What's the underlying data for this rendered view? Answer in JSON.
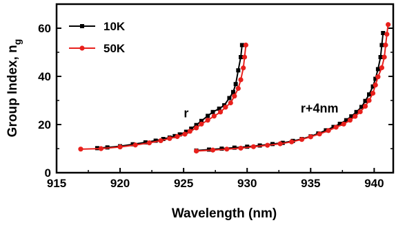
{
  "chart_data": {
    "type": "line",
    "xlabel": "Wavelength (nm)",
    "ylabel": "Group Index, n",
    "ylabel_sub": "g",
    "xlim": [
      915,
      941.5
    ],
    "ylim": [
      0,
      70
    ],
    "xticks": [
      915,
      920,
      925,
      930,
      935,
      940
    ],
    "yticks": [
      0,
      20,
      40,
      60
    ],
    "legend_position": "top-left",
    "annotations": [
      {
        "text": "r",
        "x": 925.2,
        "y": 23
      },
      {
        "text": "r+4nm",
        "x": 935.7,
        "y": 25
      }
    ],
    "series": [
      {
        "name": "10K",
        "color": "#000000",
        "marker": "square",
        "segments": [
          [
            [
              918.2,
              10.2
            ],
            [
              919.0,
              10.5
            ],
            [
              920.0,
              11.0
            ],
            [
              921.0,
              11.8
            ],
            [
              922.0,
              12.6
            ],
            [
              922.8,
              13.3
            ],
            [
              923.4,
              14.0
            ],
            [
              923.9,
              14.6
            ],
            [
              924.3,
              15.2
            ],
            [
              924.7,
              15.9
            ],
            [
              925.2,
              17.0
            ],
            [
              925.6,
              18.3
            ],
            [
              926.0,
              19.8
            ],
            [
              926.4,
              21.5
            ],
            [
              926.9,
              23.6
            ],
            [
              927.3,
              25.2
            ],
            [
              927.8,
              26.6
            ],
            [
              928.2,
              28.0
            ],
            [
              928.6,
              31.0
            ],
            [
              928.9,
              33.5
            ],
            [
              929.1,
              36.8
            ],
            [
              929.3,
              42.5
            ],
            [
              929.5,
              48.0
            ],
            [
              929.6,
              53.0
            ]
          ],
          [
            [
              926.0,
              9.2
            ],
            [
              927.0,
              9.6
            ],
            [
              928.0,
              10.0
            ],
            [
              929.0,
              10.4
            ],
            [
              930.0,
              10.8
            ],
            [
              931.0,
              11.3
            ],
            [
              932.0,
              11.9
            ],
            [
              932.8,
              12.4
            ],
            [
              933.6,
              13.2
            ],
            [
              934.3,
              14.0
            ],
            [
              935.0,
              15.1
            ],
            [
              935.6,
              16.3
            ],
            [
              936.2,
              17.6
            ],
            [
              936.8,
              19.0
            ],
            [
              937.3,
              20.3
            ],
            [
              937.8,
              21.8
            ],
            [
              938.2,
              23.4
            ],
            [
              938.6,
              25.2
            ],
            [
              939.0,
              27.3
            ],
            [
              939.3,
              29.8
            ],
            [
              939.6,
              32.5
            ],
            [
              939.9,
              35.8
            ],
            [
              940.1,
              39.0
            ],
            [
              940.3,
              43.0
            ],
            [
              940.5,
              48.0
            ],
            [
              940.6,
              53.0
            ],
            [
              940.7,
              58.0
            ]
          ]
        ]
      },
      {
        "name": "50K",
        "color": "#e8201c",
        "marker": "circle",
        "segments": [
          [
            [
              916.9,
              9.8
            ],
            [
              918.5,
              10.0
            ],
            [
              920.0,
              10.7
            ],
            [
              921.2,
              11.5
            ],
            [
              922.3,
              12.4
            ],
            [
              923.2,
              13.3
            ],
            [
              923.9,
              14.2
            ],
            [
              924.5,
              15.0
            ],
            [
              925.1,
              16.0
            ],
            [
              925.5,
              17.2
            ],
            [
              926.0,
              18.6
            ],
            [
              926.4,
              20.2
            ],
            [
              926.9,
              21.8
            ],
            [
              927.4,
              23.5
            ],
            [
              927.9,
              25.2
            ],
            [
              928.3,
              27.2
            ],
            [
              928.7,
              29.0
            ],
            [
              929.0,
              31.8
            ],
            [
              929.3,
              35.0
            ],
            [
              929.5,
              38.6
            ],
            [
              929.7,
              43.5
            ],
            [
              929.8,
              48.0
            ],
            [
              929.9,
              53.0
            ]
          ],
          [
            [
              926.0,
              9.0
            ],
            [
              927.3,
              9.4
            ],
            [
              928.4,
              9.8
            ],
            [
              929.5,
              10.2
            ],
            [
              930.5,
              10.8
            ],
            [
              931.6,
              11.4
            ],
            [
              932.6,
              12.0
            ],
            [
              933.5,
              12.8
            ],
            [
              934.3,
              13.8
            ],
            [
              935.0,
              14.9
            ],
            [
              935.7,
              16.1
            ],
            [
              936.4,
              17.5
            ],
            [
              937.0,
              18.9
            ],
            [
              937.6,
              20.2
            ],
            [
              938.1,
              21.8
            ],
            [
              938.5,
              23.4
            ],
            [
              938.9,
              25.3
            ],
            [
              939.3,
              27.6
            ],
            [
              939.6,
              30.0
            ],
            [
              939.9,
              33.0
            ],
            [
              940.1,
              36.4
            ],
            [
              940.3,
              39.8
            ],
            [
              940.6,
              43.6
            ],
            [
              940.8,
              48.0
            ],
            [
              940.9,
              53.0
            ],
            [
              941.0,
              57.5
            ],
            [
              941.1,
              61.5
            ]
          ]
        ]
      }
    ]
  }
}
